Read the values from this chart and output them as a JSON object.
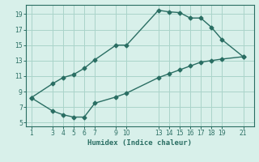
{
  "xlabel": "Humidex (Indice chaleur)",
  "upper_line": {
    "x": [
      1,
      3,
      4,
      5,
      6,
      7,
      9,
      10,
      13,
      14,
      15,
      16,
      17,
      18,
      19,
      21
    ],
    "y": [
      8.2,
      10,
      10.8,
      11.2,
      12,
      13.1,
      15.0,
      15.0,
      19.5,
      19.3,
      19.2,
      18.5,
      18.5,
      17.3,
      15.7,
      13.5
    ]
  },
  "lower_line": {
    "x": [
      1,
      3,
      4,
      5,
      6,
      7,
      9,
      10,
      13,
      14,
      15,
      16,
      17,
      18,
      19,
      21
    ],
    "y": [
      8.2,
      6.5,
      6.0,
      5.7,
      5.7,
      7.5,
      8.3,
      8.8,
      10.8,
      11.3,
      11.8,
      12.3,
      12.8,
      13.0,
      13.2,
      13.5
    ]
  },
  "line_color": "#2a6e63",
  "bg_color": "#d8f0ea",
  "grid_color": "#aad4ca",
  "yticks": [
    5,
    7,
    9,
    11,
    13,
    15,
    17,
    19
  ],
  "xticks": [
    1,
    3,
    4,
    5,
    6,
    7,
    9,
    10,
    13,
    14,
    15,
    16,
    17,
    18,
    19,
    21
  ],
  "ylim": [
    4.5,
    20.2
  ],
  "xlim": [
    0.5,
    22.0
  ]
}
